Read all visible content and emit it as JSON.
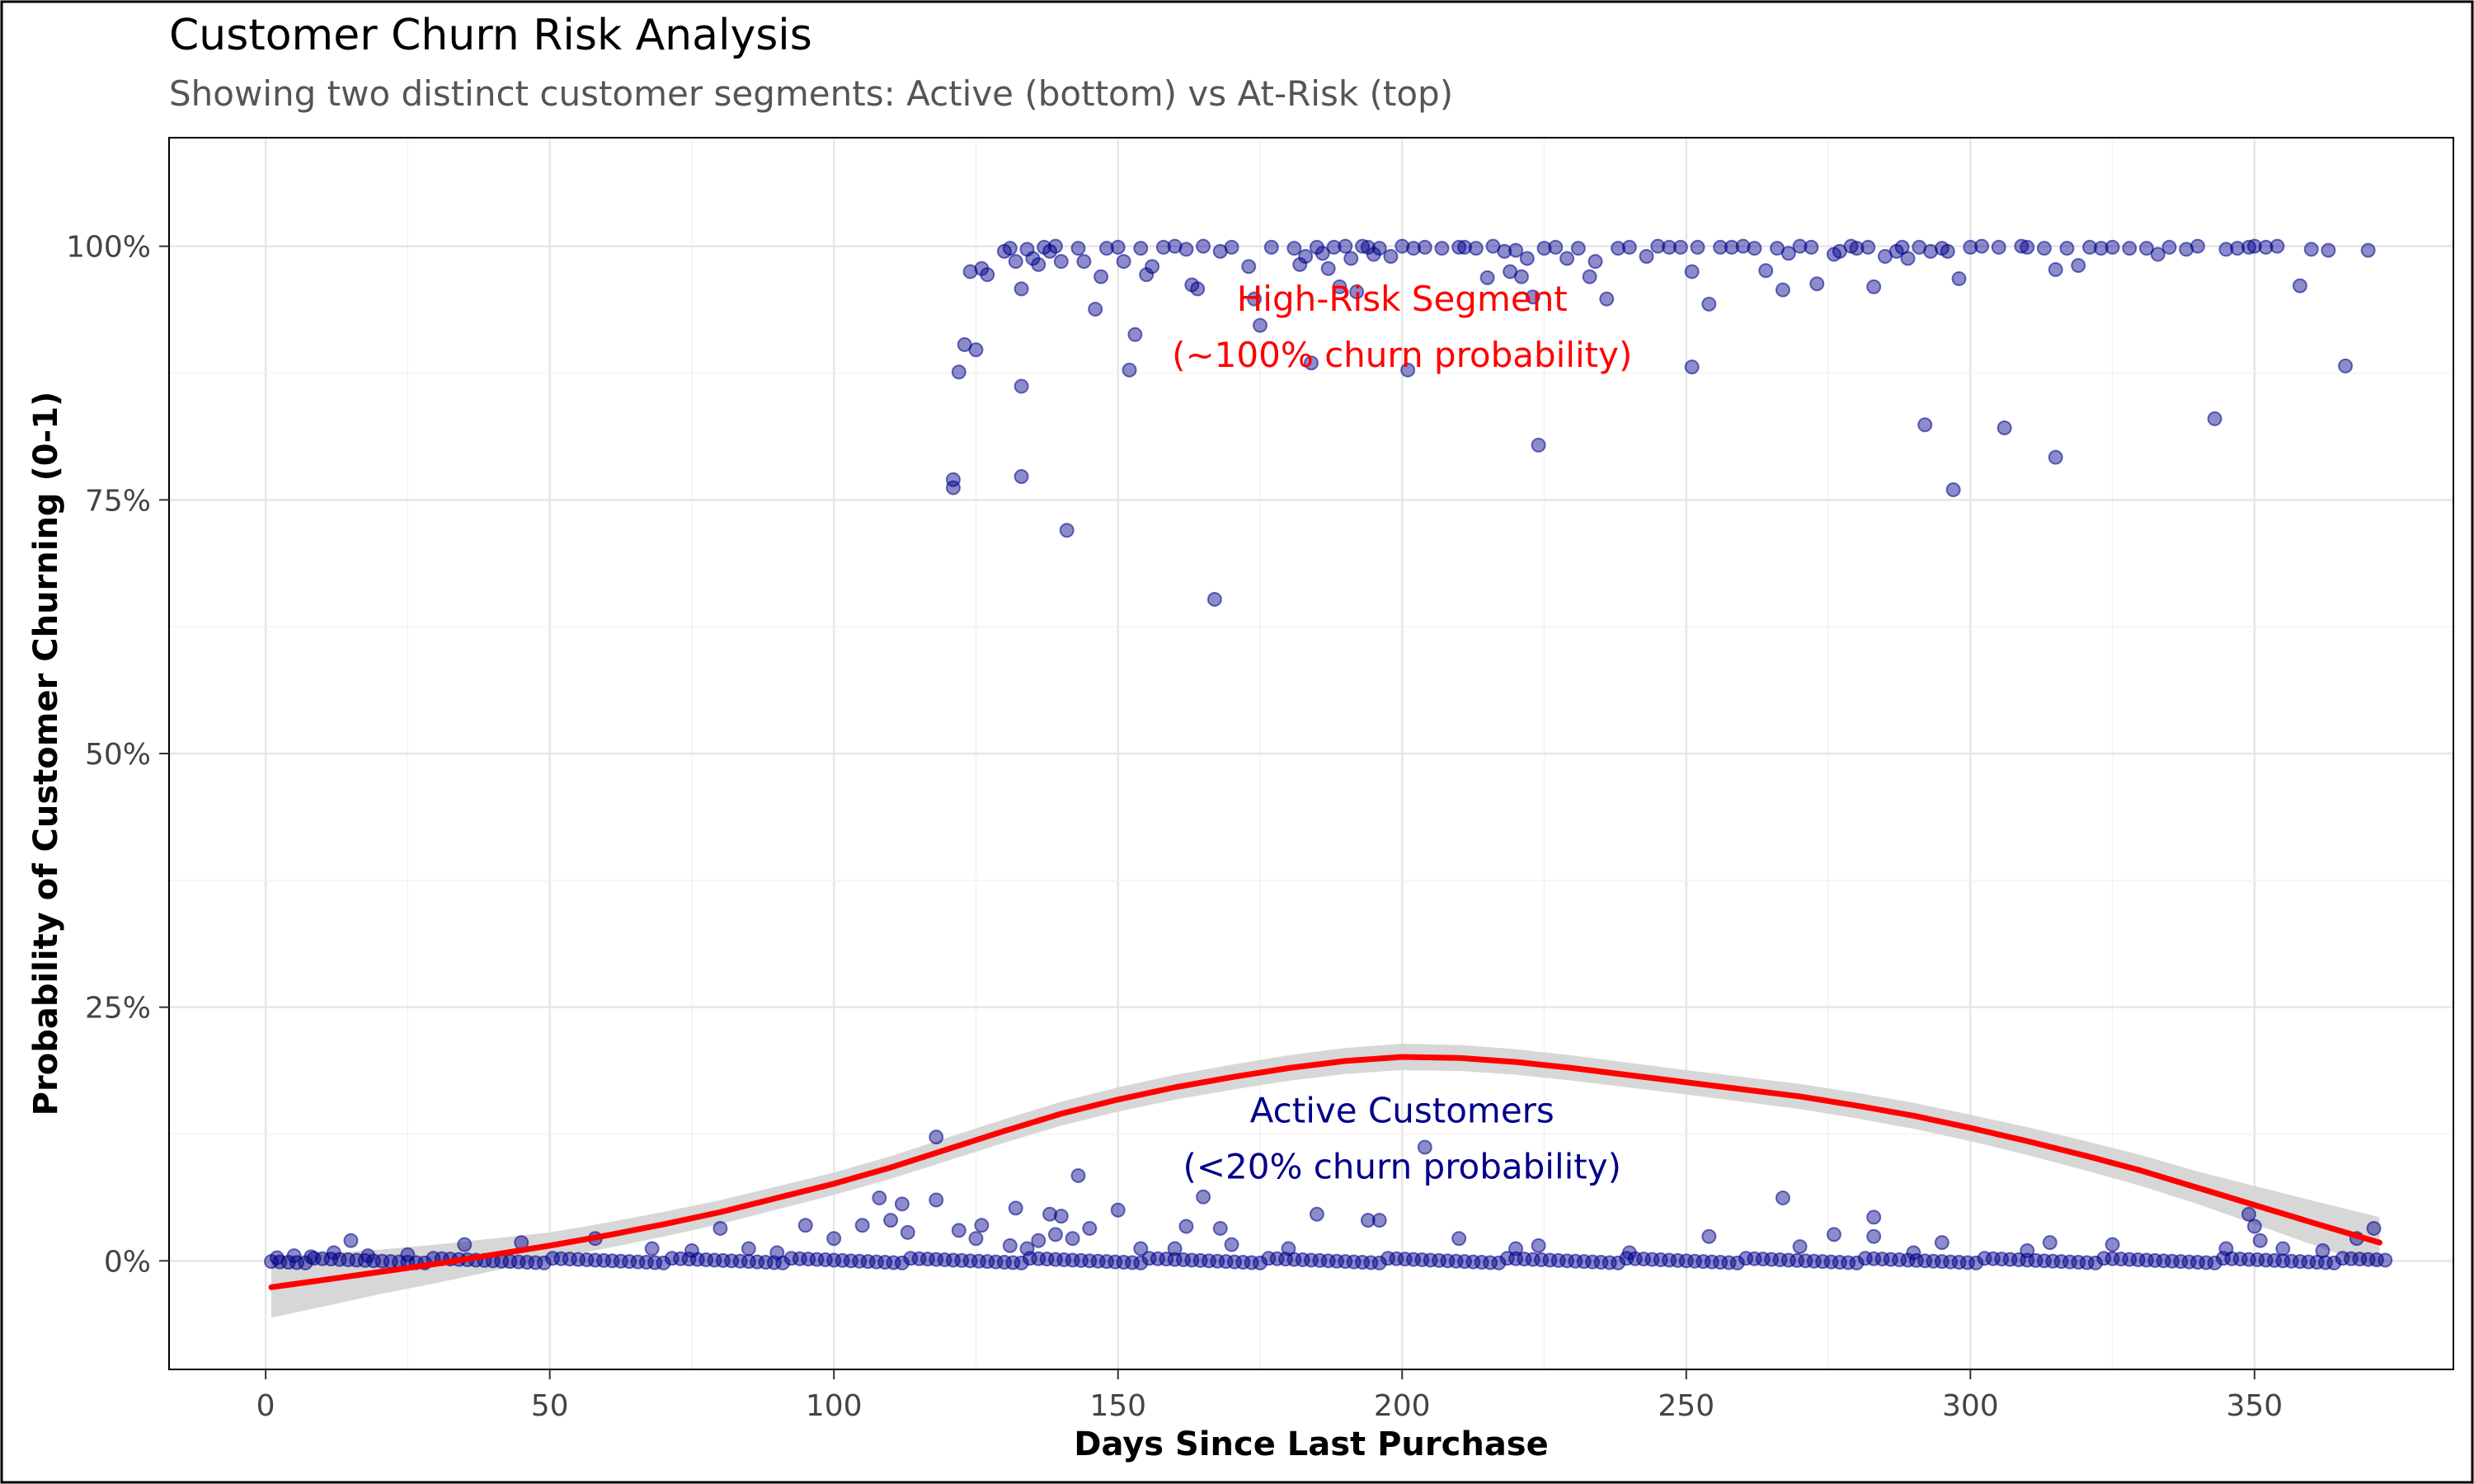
{
  "chart_data": {
    "type": "scatter",
    "title": "Customer Churn Risk Analysis",
    "subtitle": "Showing two distinct customer segments: Active (bottom) vs At-Risk (top)",
    "xlabel": "Days Since Last Purchase",
    "ylabel": "Probability of Customer Churning (0-1)",
    "xlim": [
      -17,
      385
    ],
    "ylim": [
      -0.107,
      1.107
    ],
    "x_ticks": [
      0,
      50,
      100,
      150,
      200,
      250,
      300,
      350
    ],
    "x_tick_labels": [
      "0",
      "50",
      "100",
      "150",
      "200",
      "250",
      "300",
      "350"
    ],
    "y_ticks": [
      0,
      0.25,
      0.5,
      0.75,
      1.0
    ],
    "y_tick_labels": [
      "0%",
      "25%",
      "50%",
      "75%",
      "100%"
    ],
    "grid": true,
    "point_color": "#00008B",
    "smooth_color": "#FF0000",
    "band_color": "#D3D3D3",
    "annotations": [
      {
        "lines": [
          "High-Risk Segment",
          "(~100% churn probability)"
        ],
        "x": 200,
        "y": 0.92,
        "color": "#FF0000"
      },
      {
        "lines": [
          "Active Customers",
          "(<20% churn probability)"
        ],
        "x": 200,
        "y": 0.12,
        "color": "#00008B"
      }
    ],
    "high_risk_points": [
      [
        121,
        0.77
      ],
      [
        121,
        0.762
      ],
      [
        122,
        0.876
      ],
      [
        123,
        0.903
      ],
      [
        124,
        0.975
      ],
      [
        125,
        0.898
      ],
      [
        126,
        0.978
      ],
      [
        127,
        0.972
      ],
      [
        130,
        0.995
      ],
      [
        131,
        0.998
      ],
      [
        132,
        0.985
      ],
      [
        133,
        0.958
      ],
      [
        133,
        0.862
      ],
      [
        133,
        0.773
      ],
      [
        134,
        0.997
      ],
      [
        135,
        0.988
      ],
      [
        136,
        0.982
      ],
      [
        137,
        0.999
      ],
      [
        138,
        0.995
      ],
      [
        139,
        1.0
      ],
      [
        140,
        0.985
      ],
      [
        141,
        0.72
      ],
      [
        143,
        0.998
      ],
      [
        144,
        0.985
      ],
      [
        146,
        0.938
      ],
      [
        147,
        0.97
      ],
      [
        148,
        0.998
      ],
      [
        150,
        0.999
      ],
      [
        151,
        0.985
      ],
      [
        152,
        0.878
      ],
      [
        153,
        0.913
      ],
      [
        154,
        0.998
      ],
      [
        155,
        0.972
      ],
      [
        156,
        0.98
      ],
      [
        158,
        0.999
      ],
      [
        160,
        1.0
      ],
      [
        162,
        0.997
      ],
      [
        163,
        0.962
      ],
      [
        164,
        0.958
      ],
      [
        165,
        1.0
      ],
      [
        167,
        0.652
      ],
      [
        168,
        0.995
      ],
      [
        170,
        0.999
      ],
      [
        173,
        0.98
      ],
      [
        174,
        0.948
      ],
      [
        175,
        0.922
      ],
      [
        177,
        0.999
      ],
      [
        181,
        0.998
      ],
      [
        182,
        0.982
      ],
      [
        183,
        0.99
      ],
      [
        184,
        0.885
      ],
      [
        185,
        0.999
      ],
      [
        186,
        0.993
      ],
      [
        187,
        0.978
      ],
      [
        188,
        0.999
      ],
      [
        189,
        0.96
      ],
      [
        190,
        1.0
      ],
      [
        191,
        0.988
      ],
      [
        192,
        0.955
      ],
      [
        193,
        1.0
      ],
      [
        194,
        0.999
      ],
      [
        195,
        0.992
      ],
      [
        196,
        0.998
      ],
      [
        198,
        0.99
      ],
      [
        200,
        1.0
      ],
      [
        201,
        0.878
      ],
      [
        202,
        0.998
      ],
      [
        204,
        0.999
      ],
      [
        207,
        0.998
      ],
      [
        210,
        0.999
      ],
      [
        211,
        0.999
      ],
      [
        213,
        0.998
      ],
      [
        215,
        0.969
      ],
      [
        216,
        1.0
      ],
      [
        218,
        0.995
      ],
      [
        219,
        0.975
      ],
      [
        220,
        0.996
      ],
      [
        221,
        0.97
      ],
      [
        222,
        0.988
      ],
      [
        223,
        0.95
      ],
      [
        224,
        0.804
      ],
      [
        225,
        0.998
      ],
      [
        227,
        0.999
      ],
      [
        229,
        0.988
      ],
      [
        231,
        0.998
      ],
      [
        233,
        0.97
      ],
      [
        234,
        0.985
      ],
      [
        236,
        0.948
      ],
      [
        238,
        0.998
      ],
      [
        240,
        0.999
      ],
      [
        243,
        0.99
      ],
      [
        245,
        1.0
      ],
      [
        247,
        0.999
      ],
      [
        249,
        0.999
      ],
      [
        251,
        0.975
      ],
      [
        251,
        0.881
      ],
      [
        252,
        0.999
      ],
      [
        254,
        0.943
      ],
      [
        256,
        0.999
      ],
      [
        258,
        0.999
      ],
      [
        260,
        1.0
      ],
      [
        262,
        0.998
      ],
      [
        264,
        0.976
      ],
      [
        266,
        0.998
      ],
      [
        267,
        0.957
      ],
      [
        268,
        0.993
      ],
      [
        270,
        1.0
      ],
      [
        272,
        0.999
      ],
      [
        273,
        0.963
      ],
      [
        276,
        0.992
      ],
      [
        277,
        0.995
      ],
      [
        279,
        1.0
      ],
      [
        280,
        0.998
      ],
      [
        282,
        0.999
      ],
      [
        283,
        0.96
      ],
      [
        285,
        0.99
      ],
      [
        287,
        0.995
      ],
      [
        288,
        0.999
      ],
      [
        289,
        0.988
      ],
      [
        291,
        0.999
      ],
      [
        292,
        0.824
      ],
      [
        293,
        0.995
      ],
      [
        295,
        0.998
      ],
      [
        296,
        0.995
      ],
      [
        297,
        0.76
      ],
      [
        298,
        0.968
      ],
      [
        300,
        0.999
      ],
      [
        302,
        1.0
      ],
      [
        305,
        0.999
      ],
      [
        306,
        0.821
      ],
      [
        309,
        1.0
      ],
      [
        310,
        0.999
      ],
      [
        313,
        0.998
      ],
      [
        315,
        0.977
      ],
      [
        315,
        0.792
      ],
      [
        317,
        0.998
      ],
      [
        319,
        0.981
      ],
      [
        321,
        0.999
      ],
      [
        323,
        0.998
      ],
      [
        325,
        0.999
      ],
      [
        328,
        0.998
      ],
      [
        331,
        0.998
      ],
      [
        333,
        0.992
      ],
      [
        335,
        0.999
      ],
      [
        338,
        0.997
      ],
      [
        340,
        1.0
      ],
      [
        343,
        0.83
      ],
      [
        345,
        0.997
      ],
      [
        347,
        0.998
      ],
      [
        349,
        0.999
      ],
      [
        350,
        1.0
      ],
      [
        352,
        0.999
      ],
      [
        354,
        1.0
      ],
      [
        358,
        0.961
      ],
      [
        360,
        0.997
      ],
      [
        363,
        0.996
      ],
      [
        366,
        0.882
      ],
      [
        370,
        0.996
      ]
    ],
    "active_scatter_points": [
      [
        2,
        0.003
      ],
      [
        5,
        0.005
      ],
      [
        8,
        0.004
      ],
      [
        12,
        0.008
      ],
      [
        15,
        0.02
      ],
      [
        18,
        0.005
      ],
      [
        25,
        0.006
      ],
      [
        35,
        0.016
      ],
      [
        45,
        0.018
      ],
      [
        58,
        0.022
      ],
      [
        68,
        0.012
      ],
      [
        75,
        0.01
      ],
      [
        80,
        0.032
      ],
      [
        85,
        0.012
      ],
      [
        90,
        0.008
      ],
      [
        95,
        0.035
      ],
      [
        100,
        0.022
      ],
      [
        105,
        0.035
      ],
      [
        108,
        0.062
      ],
      [
        110,
        0.04
      ],
      [
        112,
        0.056
      ],
      [
        113,
        0.028
      ],
      [
        118,
        0.122
      ],
      [
        118,
        0.06
      ],
      [
        122,
        0.03
      ],
      [
        125,
        0.022
      ],
      [
        126,
        0.035
      ],
      [
        131,
        0.015
      ],
      [
        132,
        0.052
      ],
      [
        134,
        0.012
      ],
      [
        136,
        0.02
      ],
      [
        138,
        0.046
      ],
      [
        139,
        0.026
      ],
      [
        140,
        0.044
      ],
      [
        142,
        0.022
      ],
      [
        143,
        0.084
      ],
      [
        145,
        0.032
      ],
      [
        150,
        0.05
      ],
      [
        154,
        0.012
      ],
      [
        160,
        0.012
      ],
      [
        162,
        0.034
      ],
      [
        165,
        0.063
      ],
      [
        168,
        0.032
      ],
      [
        170,
        0.016
      ],
      [
        180,
        0.012
      ],
      [
        185,
        0.046
      ],
      [
        194,
        0.04
      ],
      [
        196,
        0.04
      ],
      [
        204,
        0.112
      ],
      [
        210,
        0.022
      ],
      [
        220,
        0.012
      ],
      [
        224,
        0.015
      ],
      [
        240,
        0.008
      ],
      [
        254,
        0.024
      ],
      [
        267,
        0.062
      ],
      [
        270,
        0.014
      ],
      [
        276,
        0.026
      ],
      [
        283,
        0.024
      ],
      [
        283,
        0.043
      ],
      [
        290,
        0.008
      ],
      [
        295,
        0.018
      ],
      [
        310,
        0.01
      ],
      [
        314,
        0.018
      ],
      [
        325,
        0.016
      ],
      [
        345,
        0.012
      ],
      [
        349,
        0.046
      ],
      [
        350,
        0.034
      ],
      [
        351,
        0.02
      ],
      [
        355,
        0.012
      ],
      [
        362,
        0.01
      ],
      [
        368,
        0.022
      ],
      [
        371,
        0.032
      ]
    ],
    "smooth_curve": [
      [
        1,
        -0.026
      ],
      [
        10,
        -0.019
      ],
      [
        20,
        -0.011
      ],
      [
        30,
        -0.003
      ],
      [
        40,
        0.006
      ],
      [
        50,
        0.015
      ],
      [
        60,
        0.025
      ],
      [
        70,
        0.036
      ],
      [
        80,
        0.048
      ],
      [
        90,
        0.062
      ],
      [
        100,
        0.076
      ],
      [
        110,
        0.092
      ],
      [
        120,
        0.11
      ],
      [
        130,
        0.128
      ],
      [
        140,
        0.145
      ],
      [
        150,
        0.159
      ],
      [
        160,
        0.171
      ],
      [
        170,
        0.181
      ],
      [
        180,
        0.19
      ],
      [
        190,
        0.197
      ],
      [
        200,
        0.201
      ],
      [
        210,
        0.2
      ],
      [
        220,
        0.196
      ],
      [
        230,
        0.19
      ],
      [
        240,
        0.183
      ],
      [
        250,
        0.176
      ],
      [
        260,
        0.169
      ],
      [
        270,
        0.162
      ],
      [
        280,
        0.153
      ],
      [
        290,
        0.143
      ],
      [
        300,
        0.131
      ],
      [
        310,
        0.118
      ],
      [
        320,
        0.104
      ],
      [
        330,
        0.089
      ],
      [
        340,
        0.072
      ],
      [
        350,
        0.055
      ],
      [
        360,
        0.038
      ],
      [
        366,
        0.028
      ],
      [
        372,
        0.018
      ]
    ],
    "smooth_band_halfwidth": [
      [
        1,
        0.03
      ],
      [
        20,
        0.022
      ],
      [
        50,
        0.013
      ],
      [
        100,
        0.011
      ],
      [
        150,
        0.012
      ],
      [
        200,
        0.013
      ],
      [
        250,
        0.012
      ],
      [
        300,
        0.013
      ],
      [
        340,
        0.016
      ],
      [
        372,
        0.025
      ]
    ]
  }
}
